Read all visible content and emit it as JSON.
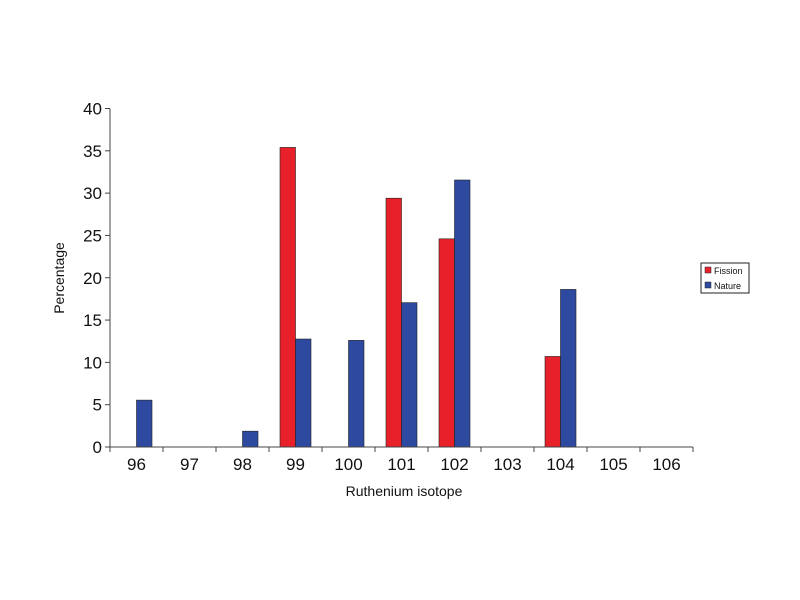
{
  "chart_data": {
    "type": "bar",
    "title": "",
    "xlabel": "Ruthenium isotope",
    "ylabel": "Percentage",
    "ylim": [
      0,
      40
    ],
    "yticks": [
      0,
      5,
      10,
      15,
      20,
      25,
      30,
      35,
      40
    ],
    "categories": [
      "96",
      "97",
      "98",
      "99",
      "100",
      "101",
      "102",
      "103",
      "104",
      "105",
      "106"
    ],
    "series": [
      {
        "name": "Fission",
        "color": "#e8202a",
        "values": [
          0,
          0,
          0,
          35.4,
          0,
          29.4,
          24.6,
          0,
          10.7,
          0,
          0
        ]
      },
      {
        "name": "Nature",
        "color": "#2e4aa0",
        "values": [
          5.54,
          0,
          1.87,
          12.76,
          12.6,
          17.06,
          31.55,
          0,
          18.62,
          0,
          0
        ]
      }
    ],
    "grid": false,
    "legend": "right"
  }
}
